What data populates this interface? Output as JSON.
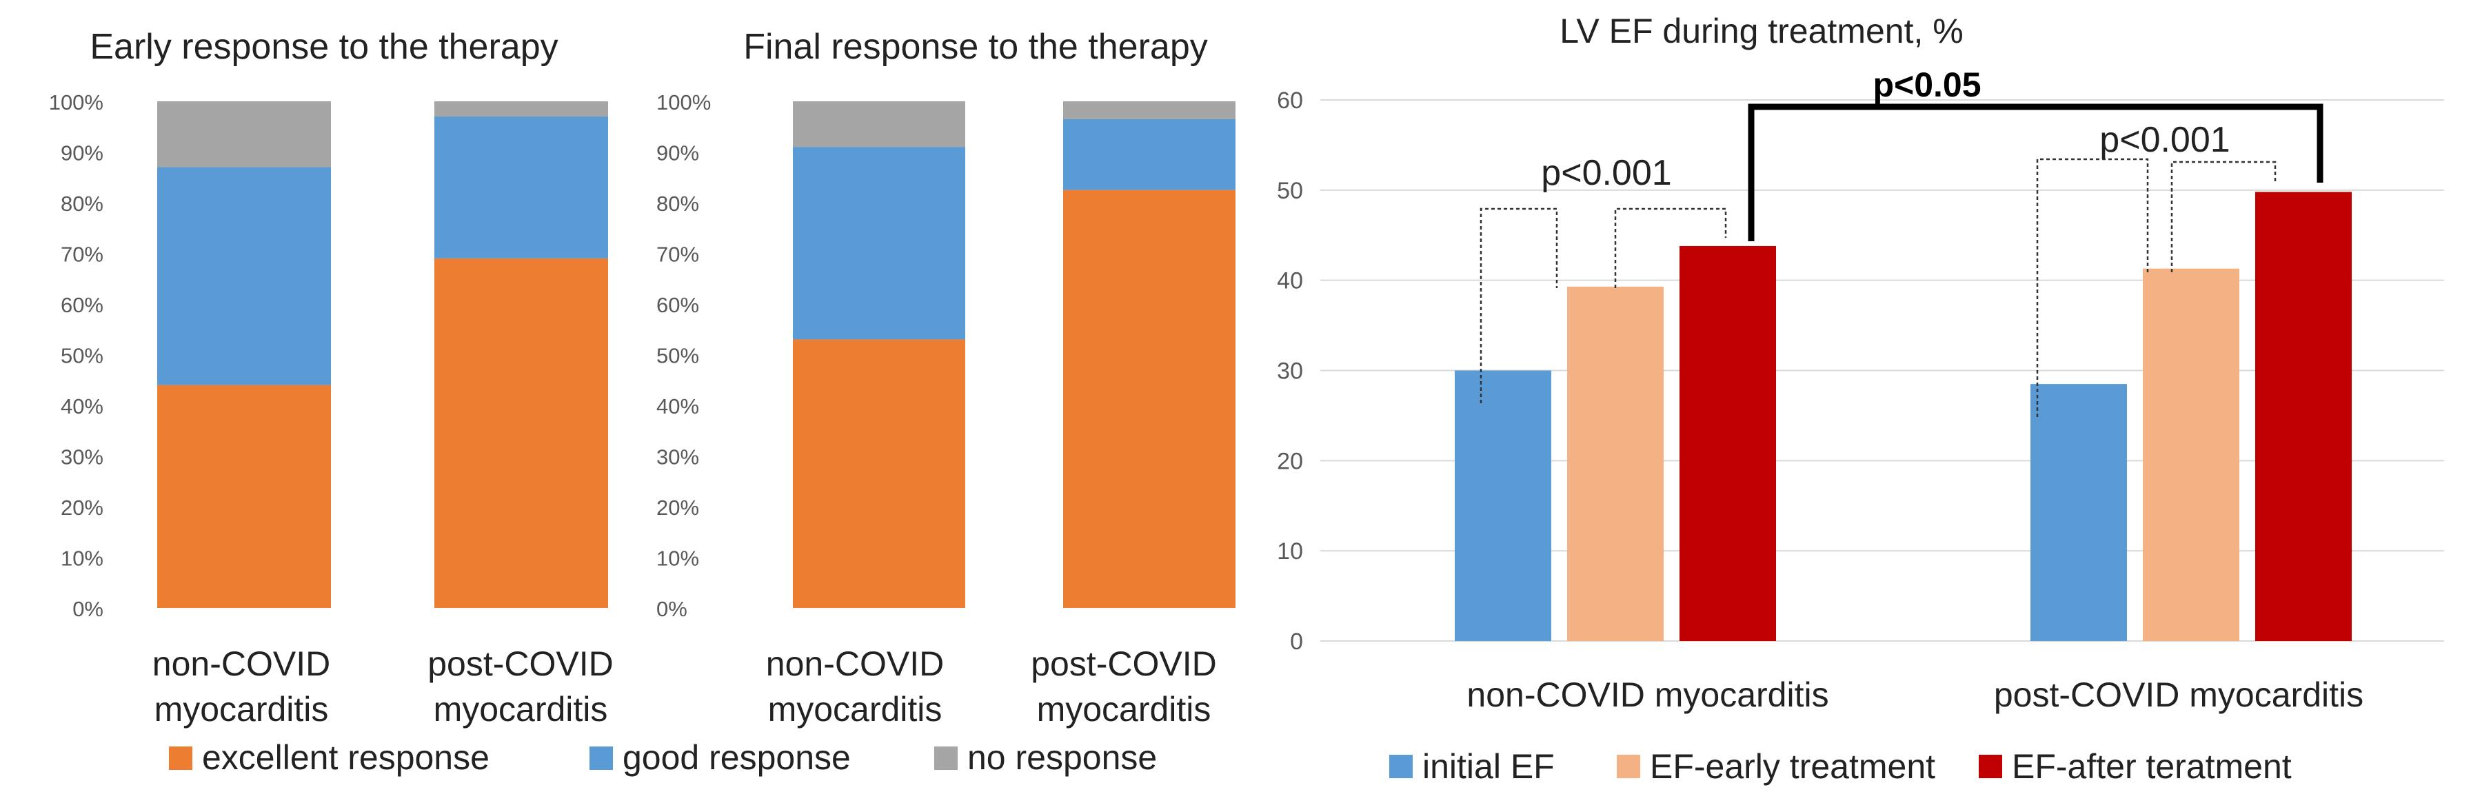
{
  "chart_data": [
    {
      "type": "bar",
      "stacked": true,
      "title": "Early response to the therapy",
      "categories": [
        "non-COVID myocarditis",
        "post-COVID myocarditis"
      ],
      "series": [
        {
          "name": "excellent response",
          "values": [
            44,
            69
          ],
          "color": "#ED7D31"
        },
        {
          "name": "good response",
          "values": [
            43,
            28
          ],
          "color": "#5B9BD5"
        },
        {
          "name": "no response",
          "values": [
            13,
            3
          ],
          "color": "#A5A5A5"
        }
      ],
      "ylim": [
        0,
        100
      ],
      "yticks": [
        "0%",
        "10%",
        "20%",
        "30%",
        "40%",
        "50%",
        "60%",
        "70%",
        "80%",
        "90%",
        "100%"
      ],
      "grid": false
    },
    {
      "type": "bar",
      "stacked": true,
      "title": "Final response to the therapy",
      "categories": [
        "non-COVID myocarditis",
        "post-COVID myocarditis"
      ],
      "series": [
        {
          "name": "excellent response",
          "values": [
            53,
            82.5
          ],
          "color": "#ED7D31"
        },
        {
          "name": "good response",
          "values": [
            38,
            14
          ],
          "color": "#5B9BD5"
        },
        {
          "name": "no response",
          "values": [
            9,
            3.5
          ],
          "color": "#A5A5A5"
        }
      ],
      "ylim": [
        0,
        100
      ],
      "yticks": [
        "0%",
        "10%",
        "20%",
        "30%",
        "40%",
        "50%",
        "60%",
        "70%",
        "80%",
        "90%",
        "100%"
      ],
      "grid": false
    },
    {
      "type": "bar",
      "title": "LV EF during treatment, %",
      "categories": [
        "non-COVID myocarditis",
        "post-COVID myocarditis"
      ],
      "series": [
        {
          "name": "initial EF",
          "values": [
            30,
            28.5
          ],
          "color": "#5B9BD5"
        },
        {
          "name": "EF-early treatment",
          "values": [
            39.3,
            41.3
          ],
          "color": "#F4B183"
        },
        {
          "name": "EF-after teratment",
          "values": [
            43.8,
            49.8
          ],
          "color": "#C00000"
        }
      ],
      "ylim": [
        0,
        60
      ],
      "yticks": [
        "0",
        "10",
        "20",
        "30",
        "40",
        "50",
        "60"
      ],
      "grid": true,
      "legend": "bottom",
      "annotations": [
        "p<0.001",
        "p<0.001",
        "p<0.05"
      ]
    }
  ],
  "shared_legend": {
    "placement": "bottom",
    "items": [
      {
        "name": "excellent response",
        "color": "#ED7D31"
      },
      {
        "name": "good response",
        "color": "#5B9BD5"
      },
      {
        "name": "no response",
        "color": "#A5A5A5"
      }
    ]
  },
  "labels": {
    "cat1_line1": "non-COVID",
    "cat1_line2": "myocarditis",
    "cat2_line1": "post-COVID",
    "cat2_line2": "myocarditis"
  }
}
